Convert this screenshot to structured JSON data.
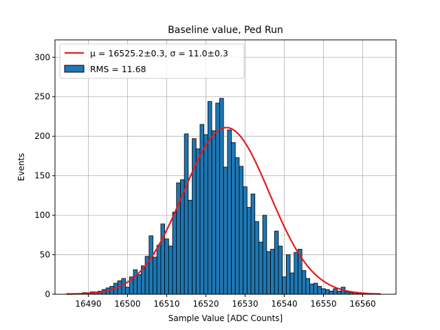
{
  "chart_data": {
    "type": "bar",
    "title": "Baseline value, Ped Run",
    "xlabel": "Sample Value [ADC Counts]",
    "ylabel": "Events",
    "xlim": [
      16481.5,
      16568.5
    ],
    "ylim": [
      0,
      322
    ],
    "xticks": [
      16490,
      16500,
      16510,
      16520,
      16530,
      16540,
      16550,
      16560
    ],
    "yticks": [
      0,
      50,
      100,
      150,
      200,
      250,
      300
    ],
    "grid": true,
    "legend_position": "upper-left",
    "bin_width": 1,
    "bin_start": 16484.5,
    "values": [
      1,
      1,
      1,
      1,
      2,
      2,
      3,
      3,
      4,
      6,
      8,
      10,
      14,
      17,
      20,
      9,
      22,
      31,
      25,
      36,
      48,
      74,
      47,
      62,
      89,
      70,
      61,
      104,
      141,
      145,
      203,
      119,
      197,
      184,
      215,
      202,
      244,
      207,
      242,
      248,
      161,
      208,
      192,
      173,
      162,
      136,
      110,
      127,
      92,
      66,
      100,
      54,
      57,
      80,
      61,
      22,
      50,
      27,
      53,
      57,
      30,
      20,
      13,
      14,
      10,
      7,
      6,
      4,
      7,
      4,
      9,
      3,
      2,
      2,
      1,
      1,
      1,
      1,
      1,
      1
    ],
    "bar_color": "#1f77b4",
    "series": [
      {
        "name": "RMS = 11.68",
        "kind": "histogram",
        "color": "#1f77b4"
      },
      {
        "name": "μ = 16525.2±0.3, σ = 11.0±0.3",
        "kind": "gaussian-fit",
        "color": "#e41a1c",
        "mu": 16525.2,
        "sigma": 11.0,
        "amplitude": 211
      }
    ]
  }
}
